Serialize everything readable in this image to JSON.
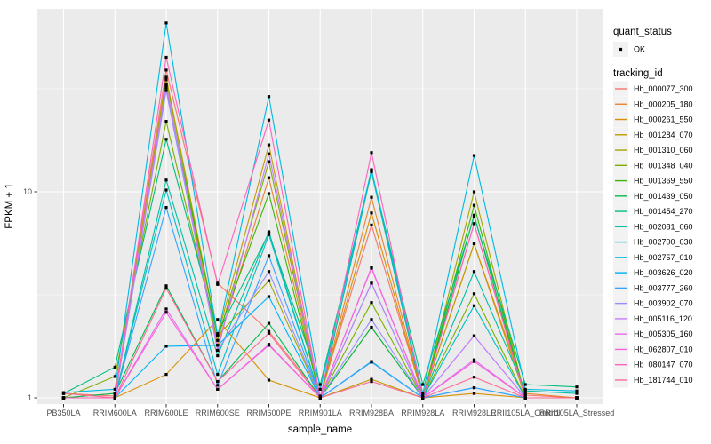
{
  "chart_data": {
    "type": "line",
    "title": "",
    "xlabel": "sample_name",
    "ylabel": "FPKM + 1",
    "y_scale": "log10",
    "y_tick_labels": [
      "1",
      "10"
    ],
    "y_tick_values": [
      1,
      10
    ],
    "y_minor_values": [
      3.1623,
      31.623
    ],
    "ylim": [
      0.93,
      77
    ],
    "grid": "on",
    "legend_position": "right",
    "panel_bg": "#EBEBEB",
    "grid_color": "#FFFFFF",
    "point_color": "#000000",
    "key_bg": "#F2F2F2",
    "categories": [
      "PB350LA",
      "RRIM600LA",
      "RRIM600LE",
      "RRIM600SE",
      "RRIM600PE",
      "RRIM901LA",
      "RRIM928BA",
      "RRIM928LA",
      "RRIM928LE",
      "RRII105LA_Control",
      "RRII105LA_Stressed"
    ],
    "legend": {
      "quant_status": {
        "title": "quant_status",
        "entries": [
          {
            "label": "OK",
            "marker": "point"
          }
        ]
      },
      "tracking_id": {
        "title": "tracking_id"
      }
    },
    "series": [
      {
        "name": "Hb_000077_300",
        "color": "#F8766D",
        "values": [
          1.05,
          1.02,
          39,
          3.6,
          2.1,
          1.02,
          6.9,
          1.02,
          7.0,
          1.03,
          1.0
        ]
      },
      {
        "name": "Hb_000205_180",
        "color": "#EA8331",
        "values": [
          1.0,
          1.05,
          33,
          1.8,
          11.7,
          1.0,
          9.4,
          1.0,
          5.6,
          1.05,
          1.0
        ]
      },
      {
        "name": "Hb_000261_550",
        "color": "#D89000",
        "values": [
          1.0,
          1.0,
          1.3,
          2.4,
          1.22,
          1.0,
          7.9,
          1.0,
          1.05,
          1.0,
          1.0
        ]
      },
      {
        "name": "Hb_001284_070",
        "color": "#C09B00",
        "values": [
          1.0,
          1.0,
          36,
          2.0,
          16.9,
          1.0,
          1.23,
          1.0,
          5.6,
          1.0,
          1.0
        ]
      },
      {
        "name": "Hb_001310_060",
        "color": "#A3A500",
        "values": [
          1.0,
          1.0,
          35,
          2.0,
          3.7,
          1.0,
          2.2,
          1.0,
          10.0,
          1.0,
          1.0
        ]
      },
      {
        "name": "Hb_001348_040",
        "color": "#7CAE00",
        "values": [
          1.0,
          1.27,
          22,
          1.9,
          14.0,
          1.0,
          2.9,
          1.0,
          3.2,
          1.0,
          1.0
        ]
      },
      {
        "name": "Hb_001369_550",
        "color": "#39B600",
        "values": [
          1.0,
          1.0,
          32,
          2.0,
          9.8,
          1.0,
          12.5,
          1.0,
          8.6,
          1.0,
          1.0
        ]
      },
      {
        "name": "Hb_001439_050",
        "color": "#00BB4E",
        "values": [
          1.0,
          1.05,
          3.5,
          1.2,
          2.3,
          1.0,
          2.2,
          1.0,
          7.7,
          1.0,
          1.0
        ]
      },
      {
        "name": "Hb_001454_270",
        "color": "#00BF7D",
        "values": [
          1.05,
          1.41,
          18,
          2.05,
          6.3,
          1.16,
          12.7,
          1.16,
          7.6,
          1.16,
          1.13
        ]
      },
      {
        "name": "Hb_002081_060",
        "color": "#00C1A3",
        "values": [
          1.0,
          1.0,
          11.4,
          1.6,
          6.4,
          1.0,
          3.6,
          1.0,
          4.1,
          1.08,
          1.05
        ]
      },
      {
        "name": "Hb_002700_030",
        "color": "#00BFC4",
        "values": [
          1.0,
          1.0,
          10.2,
          1.3,
          6.2,
          1.0,
          12.6,
          1.0,
          2.8,
          1.0,
          1.0
        ]
      },
      {
        "name": "Hb_002757_010",
        "color": "#00BAE0",
        "values": [
          1.06,
          1.1,
          66,
          2.0,
          29,
          1.1,
          12.8,
          1.05,
          15.0,
          1.1,
          1.08
        ]
      },
      {
        "name": "Hb_003626_020",
        "color": "#00B0F6",
        "values": [
          1.0,
          1.0,
          1.78,
          1.8,
          3.1,
          1.0,
          1.5,
          1.0,
          1.12,
          1.0,
          1.0
        ]
      },
      {
        "name": "Hb_003777_260",
        "color": "#35A2FF",
        "values": [
          1.0,
          1.0,
          8.4,
          1.15,
          4.9,
          1.0,
          1.49,
          1.0,
          1.12,
          1.0,
          1.0
        ]
      },
      {
        "name": "Hb_003902_070",
        "color": "#9590FF",
        "values": [
          1.0,
          1.0,
          31,
          1.7,
          4.1,
          1.0,
          2.4,
          1.0,
          2.0,
          1.0,
          1.0
        ]
      },
      {
        "name": "Hb_005116_120",
        "color": "#C77CFF",
        "values": [
          1.0,
          1.0,
          33,
          1.7,
          15.3,
          1.0,
          3.6,
          1.0,
          2.0,
          1.0,
          1.0
        ]
      },
      {
        "name": "Hb_005305_160",
        "color": "#E76BF3",
        "values": [
          1.0,
          1.0,
          2.7,
          1.1,
          1.82,
          1.0,
          4.3,
          1.0,
          1.53,
          1.0,
          1.0
        ]
      },
      {
        "name": "Hb_062807_010",
        "color": "#FA62DB",
        "values": [
          1.0,
          1.0,
          2.6,
          1.1,
          1.8,
          1.0,
          4.26,
          1.0,
          1.5,
          1.0,
          1.0
        ]
      },
      {
        "name": "Hb_080147_070",
        "color": "#FF62BC",
        "values": [
          1.0,
          1.0,
          45,
          3.55,
          22.3,
          1.0,
          15.5,
          1.0,
          7.0,
          1.0,
          1.0
        ]
      },
      {
        "name": "Hb_181744_010",
        "color": "#FF6A98",
        "values": [
          1.05,
          1.0,
          3.4,
          1.2,
          2.06,
          1.0,
          1.2,
          1.0,
          1.26,
          1.0,
          1.0
        ]
      }
    ]
  }
}
